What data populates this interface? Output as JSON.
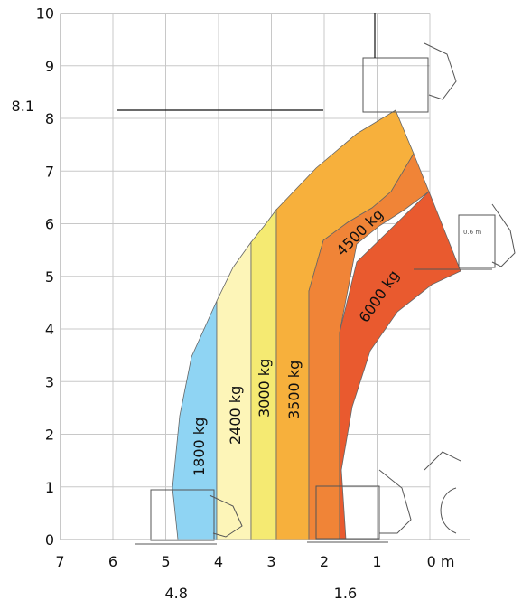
{
  "chart_data": {
    "type": "area",
    "title": "",
    "xlabel": "",
    "ylabel": "",
    "xlim": [
      0,
      7
    ],
    "ylim": [
      0,
      10
    ],
    "x_axis_reversed": true,
    "grid": true,
    "x_ticks": [
      "7",
      "6",
      "5",
      "4",
      "3",
      "2",
      "1",
      "0 m"
    ],
    "y_ticks": [
      "0",
      "1",
      "2",
      "3",
      "4",
      "5",
      "6",
      "7",
      "8",
      "9",
      "10"
    ],
    "annotations": [
      {
        "text": "8.1",
        "axis": "y",
        "value": 8.1
      },
      {
        "text": "4.8",
        "axis": "x",
        "value": 4.8
      },
      {
        "text": "1.6",
        "axis": "x",
        "value": 1.6
      }
    ],
    "zones": [
      {
        "label": "1800 kg",
        "color": "#8fd4f3",
        "max_reach_m": 4.8,
        "top_boundary": [
          [
            4.8,
            0
          ],
          [
            4.9,
            1
          ],
          [
            4.8,
            2
          ],
          [
            4.55,
            3
          ],
          [
            4.0,
            4.5
          ]
        ]
      },
      {
        "label": "2400 kg",
        "color": "#fdf5b8",
        "max_reach_m": 4.0,
        "top_boundary": [
          [
            4.0,
            4.5
          ],
          [
            3.8,
            5.0
          ],
          [
            3.4,
            5.6
          ]
        ]
      },
      {
        "label": "3000 kg",
        "color": "#f5ea72",
        "max_reach_m": 3.4,
        "top_boundary": [
          [
            3.4,
            5.6
          ],
          [
            3.1,
            5.95
          ],
          [
            2.9,
            6.2
          ]
        ]
      },
      {
        "label": "3500 kg",
        "color": "#f7b03c",
        "max_reach_m": 2.9,
        "top_boundary": [
          [
            2.9,
            6.2
          ],
          [
            1.8,
            7.45
          ],
          [
            0.6,
            8.1
          ]
        ]
      },
      {
        "label": "4500 kg",
        "color": "#f08437",
        "max_reach_m": 2.3,
        "top_boundary": [
          [
            0.3,
            7.2
          ],
          [
            1.5,
            6.4
          ],
          [
            2.1,
            5.5
          ]
        ]
      },
      {
        "label": "6000 kg",
        "color": "#e95a2f",
        "max_reach_m": 1.6,
        "top_boundary": [
          [
            0.0,
            6.5
          ],
          [
            0.9,
            5.8
          ],
          [
            1.6,
            5.15
          ]
        ]
      }
    ],
    "inset_label": "0.6 m"
  },
  "colors": {
    "grid": "#c8c8c8",
    "outline": "#666666",
    "text": "#111111"
  }
}
